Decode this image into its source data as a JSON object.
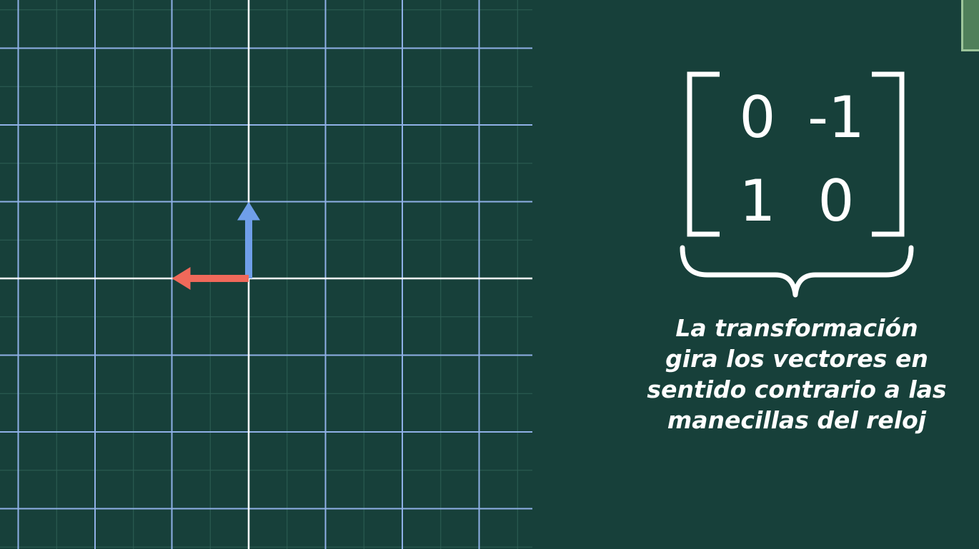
{
  "matrix": {
    "rows": [
      [
        "0",
        "-1"
      ],
      [
        "1",
        "0"
      ]
    ]
  },
  "caption": {
    "lines": [
      "La transformación",
      "gira los vectores en",
      "sentido contrario a las",
      "manecillas del reloj"
    ]
  },
  "vectors": [
    {
      "name": "blue-vector",
      "x": 0,
      "y": 1,
      "color": "#6f9fe9"
    },
    {
      "name": "red-vector",
      "x": -1,
      "y": 0,
      "color": "#f0695a"
    }
  ],
  "colors": {
    "background": "#17403a",
    "grid_major": "#8fb0e6",
    "grid_minor": "#2f5f55",
    "axis": "#ffffff",
    "text": "#ffffff"
  }
}
